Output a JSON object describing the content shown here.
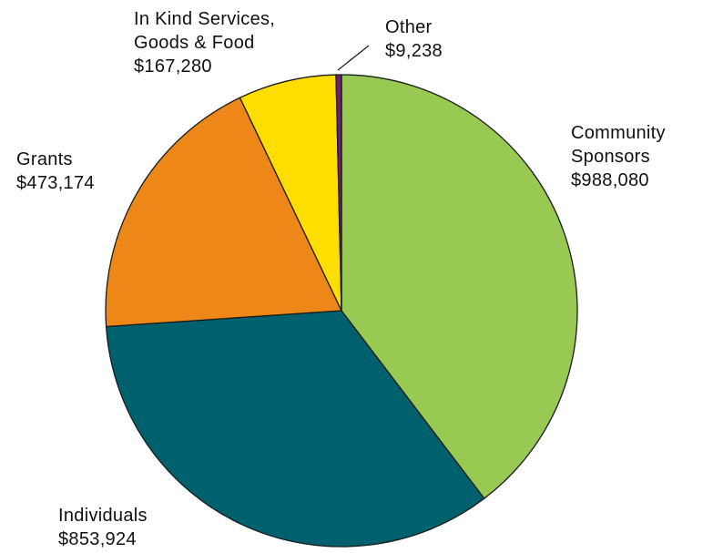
{
  "chart_data": {
    "type": "pie",
    "start_angle_deg": 0,
    "direction": "clockwise",
    "slices": [
      {
        "label_lines": [
          "Community",
          "Sponsors"
        ],
        "value_text": "$988,080",
        "value": 988080,
        "color": "#98c952"
      },
      {
        "label_lines": [
          "Individuals"
        ],
        "value_text": "$853,924",
        "value": 853924,
        "color": "#00616e"
      },
      {
        "label_lines": [
          "Grants"
        ],
        "value_text": "$473,174",
        "value": 473174,
        "color": "#ed8818"
      },
      {
        "label_lines": [
          "In Kind Services,",
          "Goods & Food"
        ],
        "value_text": "$167,280",
        "value": 167280,
        "color": "#fede00"
      },
      {
        "label_lines": [
          "Other"
        ],
        "value_text": "$9,238",
        "value": 9238,
        "color": "#6b1e73"
      }
    ],
    "legend": "none",
    "stroke_color": "#1a1a1a"
  }
}
